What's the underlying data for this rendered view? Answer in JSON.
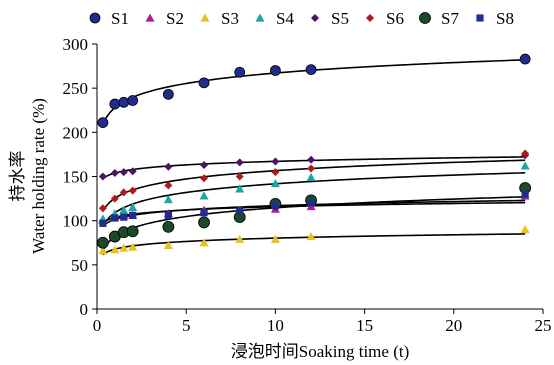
{
  "chart_data": {
    "type": "scatter",
    "xlabel": "浸泡时间Soaking time (t)",
    "ylabel_cn": "持水率",
    "ylabel": "Water holding rate (%)",
    "xlim": [
      0,
      25
    ],
    "ylim": [
      0,
      300
    ],
    "x_ticks": [
      0,
      5,
      10,
      15,
      20,
      25
    ],
    "y_ticks": [
      0,
      50,
      100,
      150,
      200,
      250,
      300
    ],
    "grid": false,
    "legend_position": "top",
    "fit_lines": true,
    "series": [
      {
        "name": "S1",
        "marker": "circle",
        "color": "#1f2e8c",
        "x": [
          0.33,
          1,
          1.5,
          2,
          4,
          6,
          8,
          10,
          12,
          24
        ],
        "y": [
          211,
          232,
          234,
          236,
          243,
          256,
          268,
          270,
          271,
          283
        ]
      },
      {
        "name": "S2",
        "marker": "triangle",
        "color": "#b0179e",
        "x": [
          0.33,
          1,
          1.5,
          2,
          4,
          6,
          8,
          10,
          12,
          24
        ],
        "y": [
          101,
          104,
          106,
          106,
          108,
          112,
          112,
          113,
          116,
          128
        ]
      },
      {
        "name": "S3",
        "marker": "triangle",
        "color": "#e6c21a",
        "x": [
          0.33,
          1,
          1.5,
          2,
          4,
          6,
          8,
          10,
          12,
          24
        ],
        "y": [
          66,
          67,
          69,
          70,
          72,
          75,
          79,
          79,
          82,
          90
        ]
      },
      {
        "name": "S4",
        "marker": "triangle",
        "color": "#1aa6a6",
        "x": [
          0.33,
          1,
          1.5,
          2,
          4,
          6,
          8,
          10,
          12,
          24
        ],
        "y": [
          102,
          108,
          112,
          115,
          124,
          128,
          136,
          142,
          149,
          162
        ]
      },
      {
        "name": "S5",
        "marker": "diamond",
        "color": "#4b1466",
        "x": [
          0.33,
          1,
          1.5,
          2,
          4,
          6,
          8,
          10,
          12,
          24
        ],
        "y": [
          150,
          154,
          155,
          156,
          161,
          163,
          166,
          167,
          169,
          174
        ]
      },
      {
        "name": "S6",
        "marker": "diamond",
        "color": "#b01a1a",
        "x": [
          0.33,
          1,
          1.5,
          2,
          4,
          6,
          8,
          10,
          12,
          24
        ],
        "y": [
          114,
          125,
          132,
          134,
          140,
          148,
          150,
          155,
          159,
          176
        ]
      },
      {
        "name": "S7",
        "marker": "circle-big",
        "color": "#1a4a2a",
        "x": [
          0.33,
          1,
          1.5,
          2,
          4,
          6,
          8,
          10,
          12,
          24
        ],
        "y": [
          75,
          82,
          87,
          88,
          93,
          98,
          104,
          119,
          123,
          137
        ]
      },
      {
        "name": "S8",
        "marker": "square",
        "color": "#1f2e8c",
        "x": [
          0.33,
          1,
          1.5,
          2,
          4,
          6,
          8,
          10,
          12,
          24
        ],
        "y": [
          97,
          103,
          104,
          106,
          106,
          109,
          111,
          117,
          120,
          130
        ]
      }
    ]
  }
}
